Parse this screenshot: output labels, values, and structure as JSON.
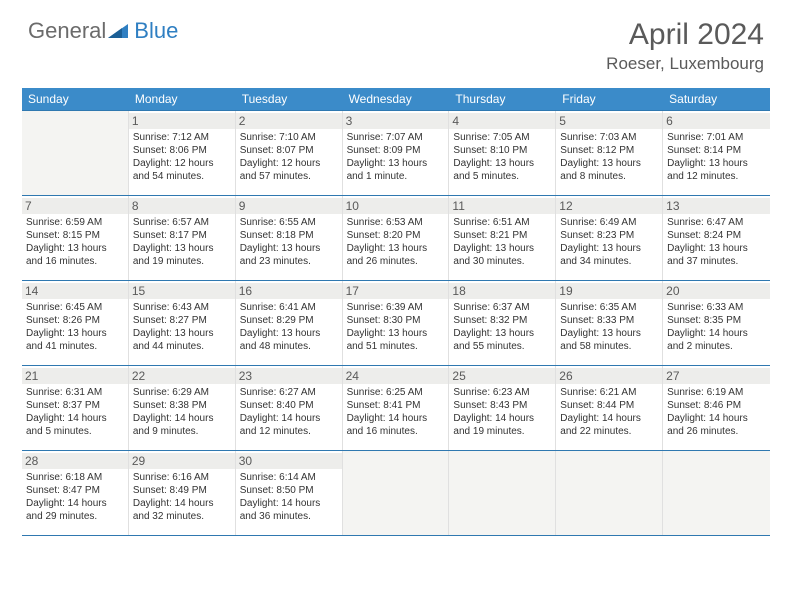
{
  "logo": {
    "text1": "General",
    "text2": "Blue"
  },
  "title": "April 2024",
  "location": "Roeser, Luxembourg",
  "colors": {
    "header_bg": "#3b8bc9",
    "week_border": "#2f78b0",
    "daynum_bg": "#ededeb",
    "empty_bg": "#f4f4f2",
    "logo_gray": "#6b6b6b",
    "logo_blue": "#2f7fc2"
  },
  "weekdays": [
    "Sunday",
    "Monday",
    "Tuesday",
    "Wednesday",
    "Thursday",
    "Friday",
    "Saturday"
  ],
  "weeks": [
    [
      {
        "empty": true
      },
      {
        "day": "1",
        "sunrise": "Sunrise: 7:12 AM",
        "sunset": "Sunset: 8:06 PM",
        "daylight": "Daylight: 12 hours and 54 minutes."
      },
      {
        "day": "2",
        "sunrise": "Sunrise: 7:10 AM",
        "sunset": "Sunset: 8:07 PM",
        "daylight": "Daylight: 12 hours and 57 minutes."
      },
      {
        "day": "3",
        "sunrise": "Sunrise: 7:07 AM",
        "sunset": "Sunset: 8:09 PM",
        "daylight": "Daylight: 13 hours and 1 minute."
      },
      {
        "day": "4",
        "sunrise": "Sunrise: 7:05 AM",
        "sunset": "Sunset: 8:10 PM",
        "daylight": "Daylight: 13 hours and 5 minutes."
      },
      {
        "day": "5",
        "sunrise": "Sunrise: 7:03 AM",
        "sunset": "Sunset: 8:12 PM",
        "daylight": "Daylight: 13 hours and 8 minutes."
      },
      {
        "day": "6",
        "sunrise": "Sunrise: 7:01 AM",
        "sunset": "Sunset: 8:14 PM",
        "daylight": "Daylight: 13 hours and 12 minutes."
      }
    ],
    [
      {
        "day": "7",
        "sunrise": "Sunrise: 6:59 AM",
        "sunset": "Sunset: 8:15 PM",
        "daylight": "Daylight: 13 hours and 16 minutes."
      },
      {
        "day": "8",
        "sunrise": "Sunrise: 6:57 AM",
        "sunset": "Sunset: 8:17 PM",
        "daylight": "Daylight: 13 hours and 19 minutes."
      },
      {
        "day": "9",
        "sunrise": "Sunrise: 6:55 AM",
        "sunset": "Sunset: 8:18 PM",
        "daylight": "Daylight: 13 hours and 23 minutes."
      },
      {
        "day": "10",
        "sunrise": "Sunrise: 6:53 AM",
        "sunset": "Sunset: 8:20 PM",
        "daylight": "Daylight: 13 hours and 26 minutes."
      },
      {
        "day": "11",
        "sunrise": "Sunrise: 6:51 AM",
        "sunset": "Sunset: 8:21 PM",
        "daylight": "Daylight: 13 hours and 30 minutes."
      },
      {
        "day": "12",
        "sunrise": "Sunrise: 6:49 AM",
        "sunset": "Sunset: 8:23 PM",
        "daylight": "Daylight: 13 hours and 34 minutes."
      },
      {
        "day": "13",
        "sunrise": "Sunrise: 6:47 AM",
        "sunset": "Sunset: 8:24 PM",
        "daylight": "Daylight: 13 hours and 37 minutes."
      }
    ],
    [
      {
        "day": "14",
        "sunrise": "Sunrise: 6:45 AM",
        "sunset": "Sunset: 8:26 PM",
        "daylight": "Daylight: 13 hours and 41 minutes."
      },
      {
        "day": "15",
        "sunrise": "Sunrise: 6:43 AM",
        "sunset": "Sunset: 8:27 PM",
        "daylight": "Daylight: 13 hours and 44 minutes."
      },
      {
        "day": "16",
        "sunrise": "Sunrise: 6:41 AM",
        "sunset": "Sunset: 8:29 PM",
        "daylight": "Daylight: 13 hours and 48 minutes."
      },
      {
        "day": "17",
        "sunrise": "Sunrise: 6:39 AM",
        "sunset": "Sunset: 8:30 PM",
        "daylight": "Daylight: 13 hours and 51 minutes."
      },
      {
        "day": "18",
        "sunrise": "Sunrise: 6:37 AM",
        "sunset": "Sunset: 8:32 PM",
        "daylight": "Daylight: 13 hours and 55 minutes."
      },
      {
        "day": "19",
        "sunrise": "Sunrise: 6:35 AM",
        "sunset": "Sunset: 8:33 PM",
        "daylight": "Daylight: 13 hours and 58 minutes."
      },
      {
        "day": "20",
        "sunrise": "Sunrise: 6:33 AM",
        "sunset": "Sunset: 8:35 PM",
        "daylight": "Daylight: 14 hours and 2 minutes."
      }
    ],
    [
      {
        "day": "21",
        "sunrise": "Sunrise: 6:31 AM",
        "sunset": "Sunset: 8:37 PM",
        "daylight": "Daylight: 14 hours and 5 minutes."
      },
      {
        "day": "22",
        "sunrise": "Sunrise: 6:29 AM",
        "sunset": "Sunset: 8:38 PM",
        "daylight": "Daylight: 14 hours and 9 minutes."
      },
      {
        "day": "23",
        "sunrise": "Sunrise: 6:27 AM",
        "sunset": "Sunset: 8:40 PM",
        "daylight": "Daylight: 14 hours and 12 minutes."
      },
      {
        "day": "24",
        "sunrise": "Sunrise: 6:25 AM",
        "sunset": "Sunset: 8:41 PM",
        "daylight": "Daylight: 14 hours and 16 minutes."
      },
      {
        "day": "25",
        "sunrise": "Sunrise: 6:23 AM",
        "sunset": "Sunset: 8:43 PM",
        "daylight": "Daylight: 14 hours and 19 minutes."
      },
      {
        "day": "26",
        "sunrise": "Sunrise: 6:21 AM",
        "sunset": "Sunset: 8:44 PM",
        "daylight": "Daylight: 14 hours and 22 minutes."
      },
      {
        "day": "27",
        "sunrise": "Sunrise: 6:19 AM",
        "sunset": "Sunset: 8:46 PM",
        "daylight": "Daylight: 14 hours and 26 minutes."
      }
    ],
    [
      {
        "day": "28",
        "sunrise": "Sunrise: 6:18 AM",
        "sunset": "Sunset: 8:47 PM",
        "daylight": "Daylight: 14 hours and 29 minutes."
      },
      {
        "day": "29",
        "sunrise": "Sunrise: 6:16 AM",
        "sunset": "Sunset: 8:49 PM",
        "daylight": "Daylight: 14 hours and 32 minutes."
      },
      {
        "day": "30",
        "sunrise": "Sunrise: 6:14 AM",
        "sunset": "Sunset: 8:50 PM",
        "daylight": "Daylight: 14 hours and 36 minutes."
      },
      {
        "empty": true
      },
      {
        "empty": true
      },
      {
        "empty": true
      },
      {
        "empty": true
      }
    ]
  ]
}
